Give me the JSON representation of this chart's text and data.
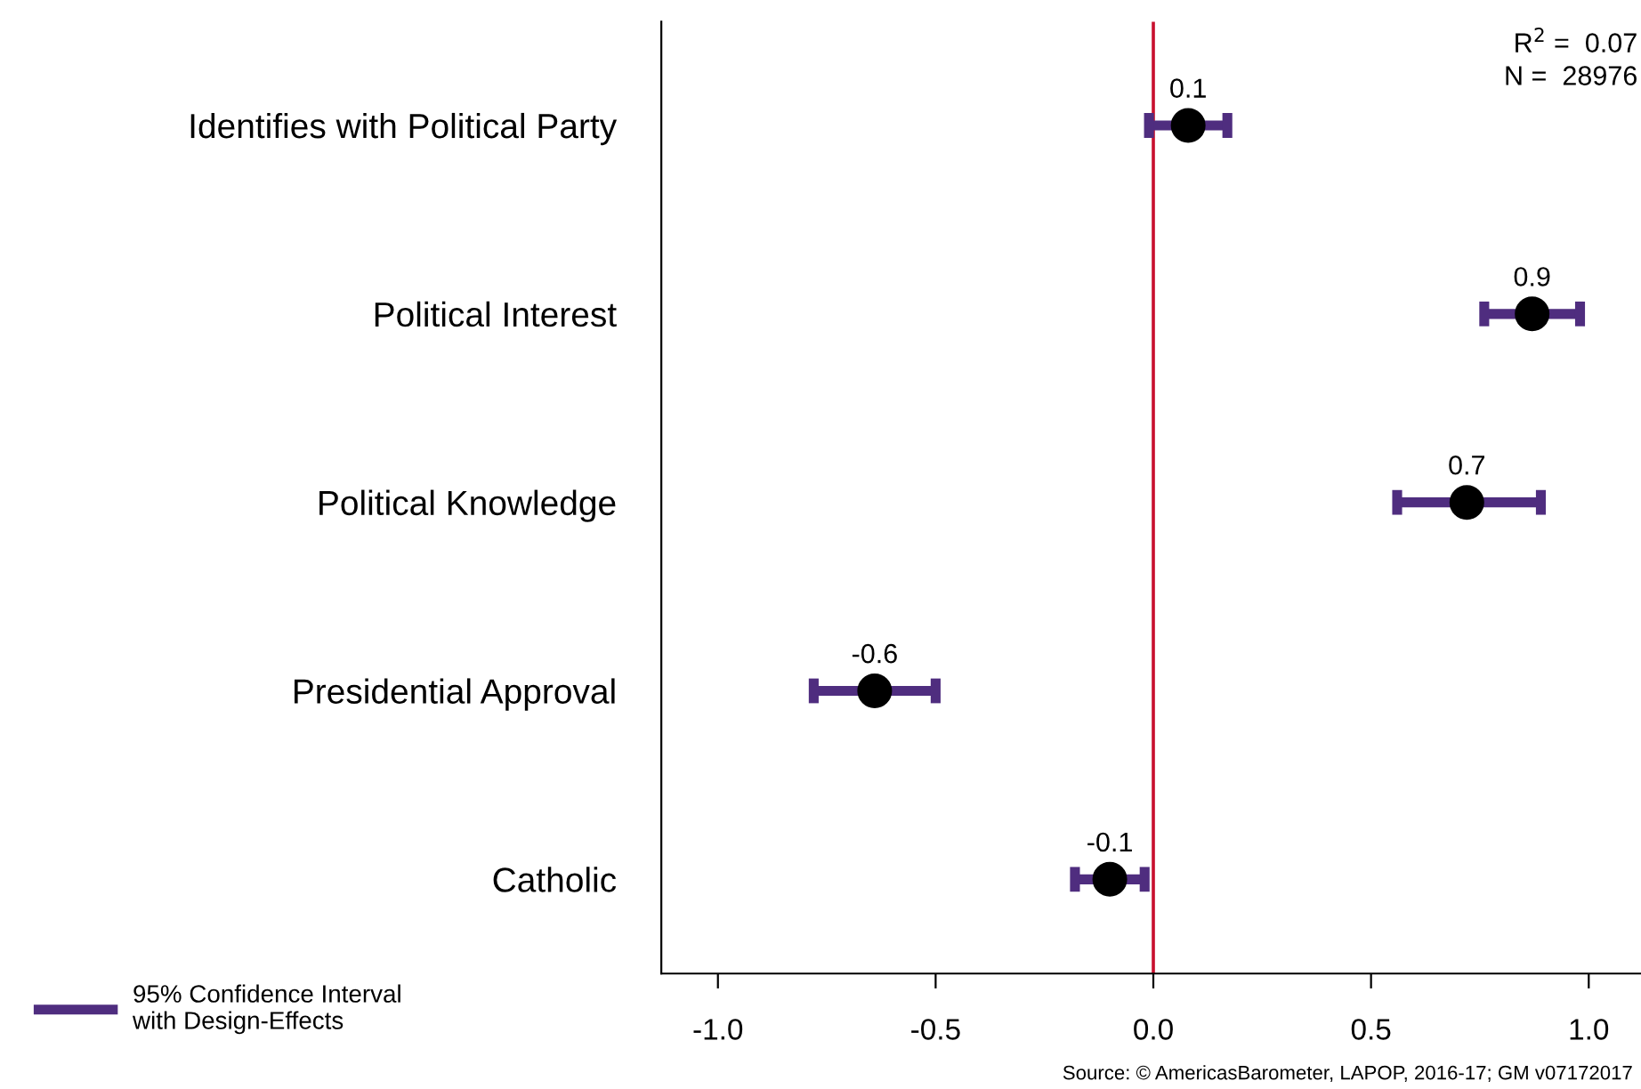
{
  "chart_data": {
    "type": "scatter",
    "orientation": "horizontal",
    "categories": [
      "Identifies with Political Party",
      "Political Interest",
      "Political Knowledge",
      "Presidential Approval",
      "Catholic"
    ],
    "series": [
      {
        "name": "95% Confidence Interval\nwith Design-Effects",
        "color": "#4f2d7f",
        "colors": [
          "#000000",
          "#000000",
          "#000000",
          "#000000",
          "#000000"
        ],
        "values": [
          0.08,
          0.87,
          0.72,
          -0.64,
          -0.1
        ],
        "errors": [
          [
            -0.01,
            0.17
          ],
          [
            0.76,
            0.98
          ],
          [
            0.56,
            0.89
          ],
          [
            -0.78,
            -0.5
          ],
          [
            -0.18,
            -0.02
          ]
        ],
        "value_labels": [
          "0.1",
          "0.9",
          "0.7",
          "-0.6",
          "-0.1"
        ]
      }
    ],
    "xlim": [
      -1.13,
      1.12
    ],
    "xticks": [
      {
        "value": -1,
        "label": "-1.0"
      },
      {
        "value": -0.5,
        "label": "-0.5"
      },
      {
        "value": 0,
        "label": "0.0"
      },
      {
        "value": 0.5,
        "label": "0.5"
      },
      {
        "value": 1,
        "label": "1.0"
      }
    ],
    "ref_lines": [
      {
        "axis": "x",
        "value": 0,
        "color": "#c8102e"
      }
    ],
    "marker": "circle",
    "grid": false,
    "legend": "bottom left",
    "annotations": [
      "R$^{2}$ =  0.07",
      "N =  28976",
      "Source: © AmericasBarometer, LAPOP, 2016-17; GM v07172017"
    ]
  }
}
